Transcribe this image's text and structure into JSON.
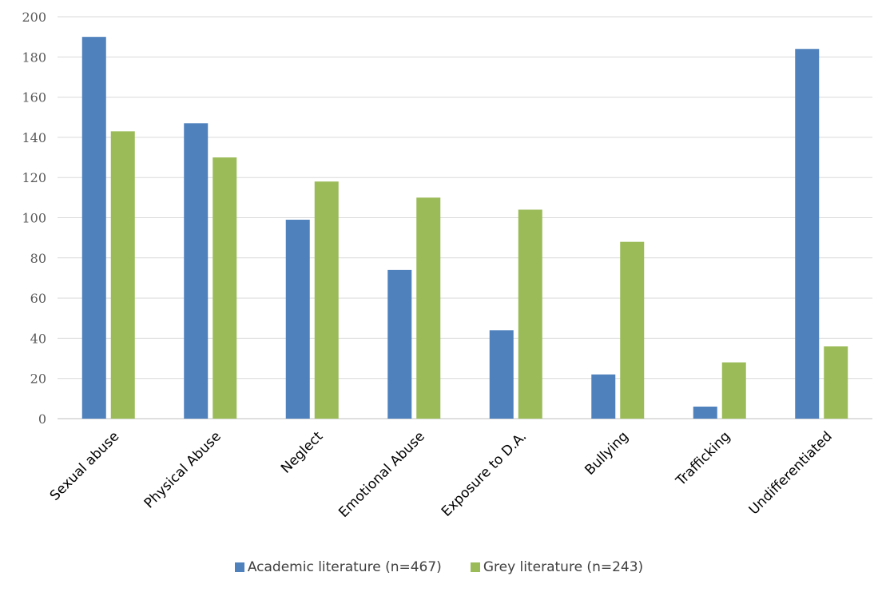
{
  "chart_data": {
    "type": "bar",
    "categories": [
      "Sexual abuse",
      "Physical Abuse",
      "Neglect",
      "Emotional Abuse",
      "Exposure to D.A.",
      "Bullying",
      "Trafficking",
      "Undifferentiated"
    ],
    "series": [
      {
        "name": "Academic literature (n=467)",
        "color": "#4F81BD",
        "values": [
          190,
          147,
          99,
          74,
          44,
          22,
          6,
          184
        ]
      },
      {
        "name": "Grey literature (n=243)",
        "color": "#9BBB59",
        "values": [
          143,
          130,
          118,
          110,
          104,
          88,
          28,
          36
        ]
      }
    ],
    "yticks": [
      0,
      20,
      40,
      60,
      80,
      100,
      120,
      140,
      160,
      180,
      200
    ],
    "ylim": [
      0,
      200
    ],
    "grid": true,
    "legend_position": "bottom",
    "title": "",
    "xlabel": "",
    "ylabel": ""
  }
}
